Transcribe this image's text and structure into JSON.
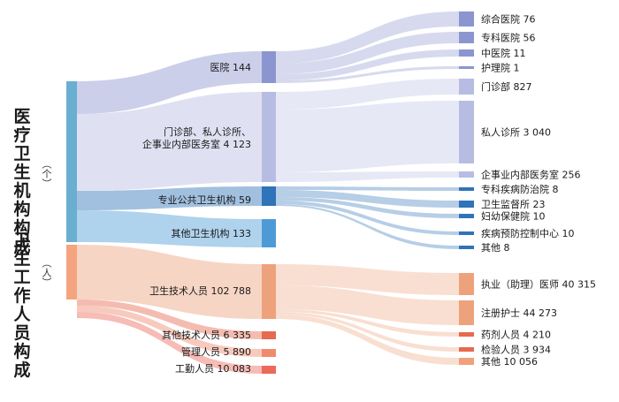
{
  "sections": [
    {
      "title": "医疗卫生机构构成",
      "unit": "（个）"
    },
    {
      "title": "卫生工作人员构成",
      "unit": "（人）"
    }
  ],
  "colors": {
    "inst_root": "#6aaed0",
    "hospital": "#8b95cf",
    "clinic": "#b7bde2",
    "public_health": "#2f73b8",
    "other_inst": "#4d9bd6",
    "staff_root": "#f4a580",
    "tech": "#eea27c",
    "other_tech": "#e66a4f",
    "admin": "#f08a6e",
    "worker": "#ec6a5a"
  },
  "mid_labels": [
    {
      "name": "医院",
      "value": "144"
    },
    {
      "name": "门诊部、私人诊所、\n企事业内部医务室",
      "value": "4 123"
    },
    {
      "name": "专业公共卫生机构",
      "value": "59"
    },
    {
      "name": "其他卫生机构",
      "value": "133"
    },
    {
      "name": "卫生技术人员",
      "value": "102 788"
    },
    {
      "name": "其他技术人员",
      "value": "6 335"
    },
    {
      "name": "管理人员",
      "value": "5 890"
    },
    {
      "name": "工勤人员",
      "value": "10 083"
    }
  ],
  "right_labels": [
    {
      "name": "综合医院",
      "value": "76"
    },
    {
      "name": "专科医院",
      "value": "56"
    },
    {
      "name": "中医院",
      "value": "11"
    },
    {
      "name": "护理院",
      "value": "1"
    },
    {
      "name": "门诊部",
      "value": "827"
    },
    {
      "name": "私人诊所",
      "value": "3 040"
    },
    {
      "name": "企事业内部医务室",
      "value": "256"
    },
    {
      "name": "专科疾病防治院",
      "value": "8"
    },
    {
      "name": "卫生监督所",
      "value": "23"
    },
    {
      "name": "妇幼保健院",
      "value": "10"
    },
    {
      "name": "疾病预防控制中心",
      "value": "10"
    },
    {
      "name": "其他",
      "value": "8"
    },
    {
      "name": "执业（助理）医师",
      "value": "40 315"
    },
    {
      "name": "注册护士",
      "value": "44 273"
    },
    {
      "name": "药剂人员",
      "value": "4 210"
    },
    {
      "name": "检验人员",
      "value": "3 934"
    },
    {
      "name": "其他",
      "value": "10 056"
    }
  ]
}
